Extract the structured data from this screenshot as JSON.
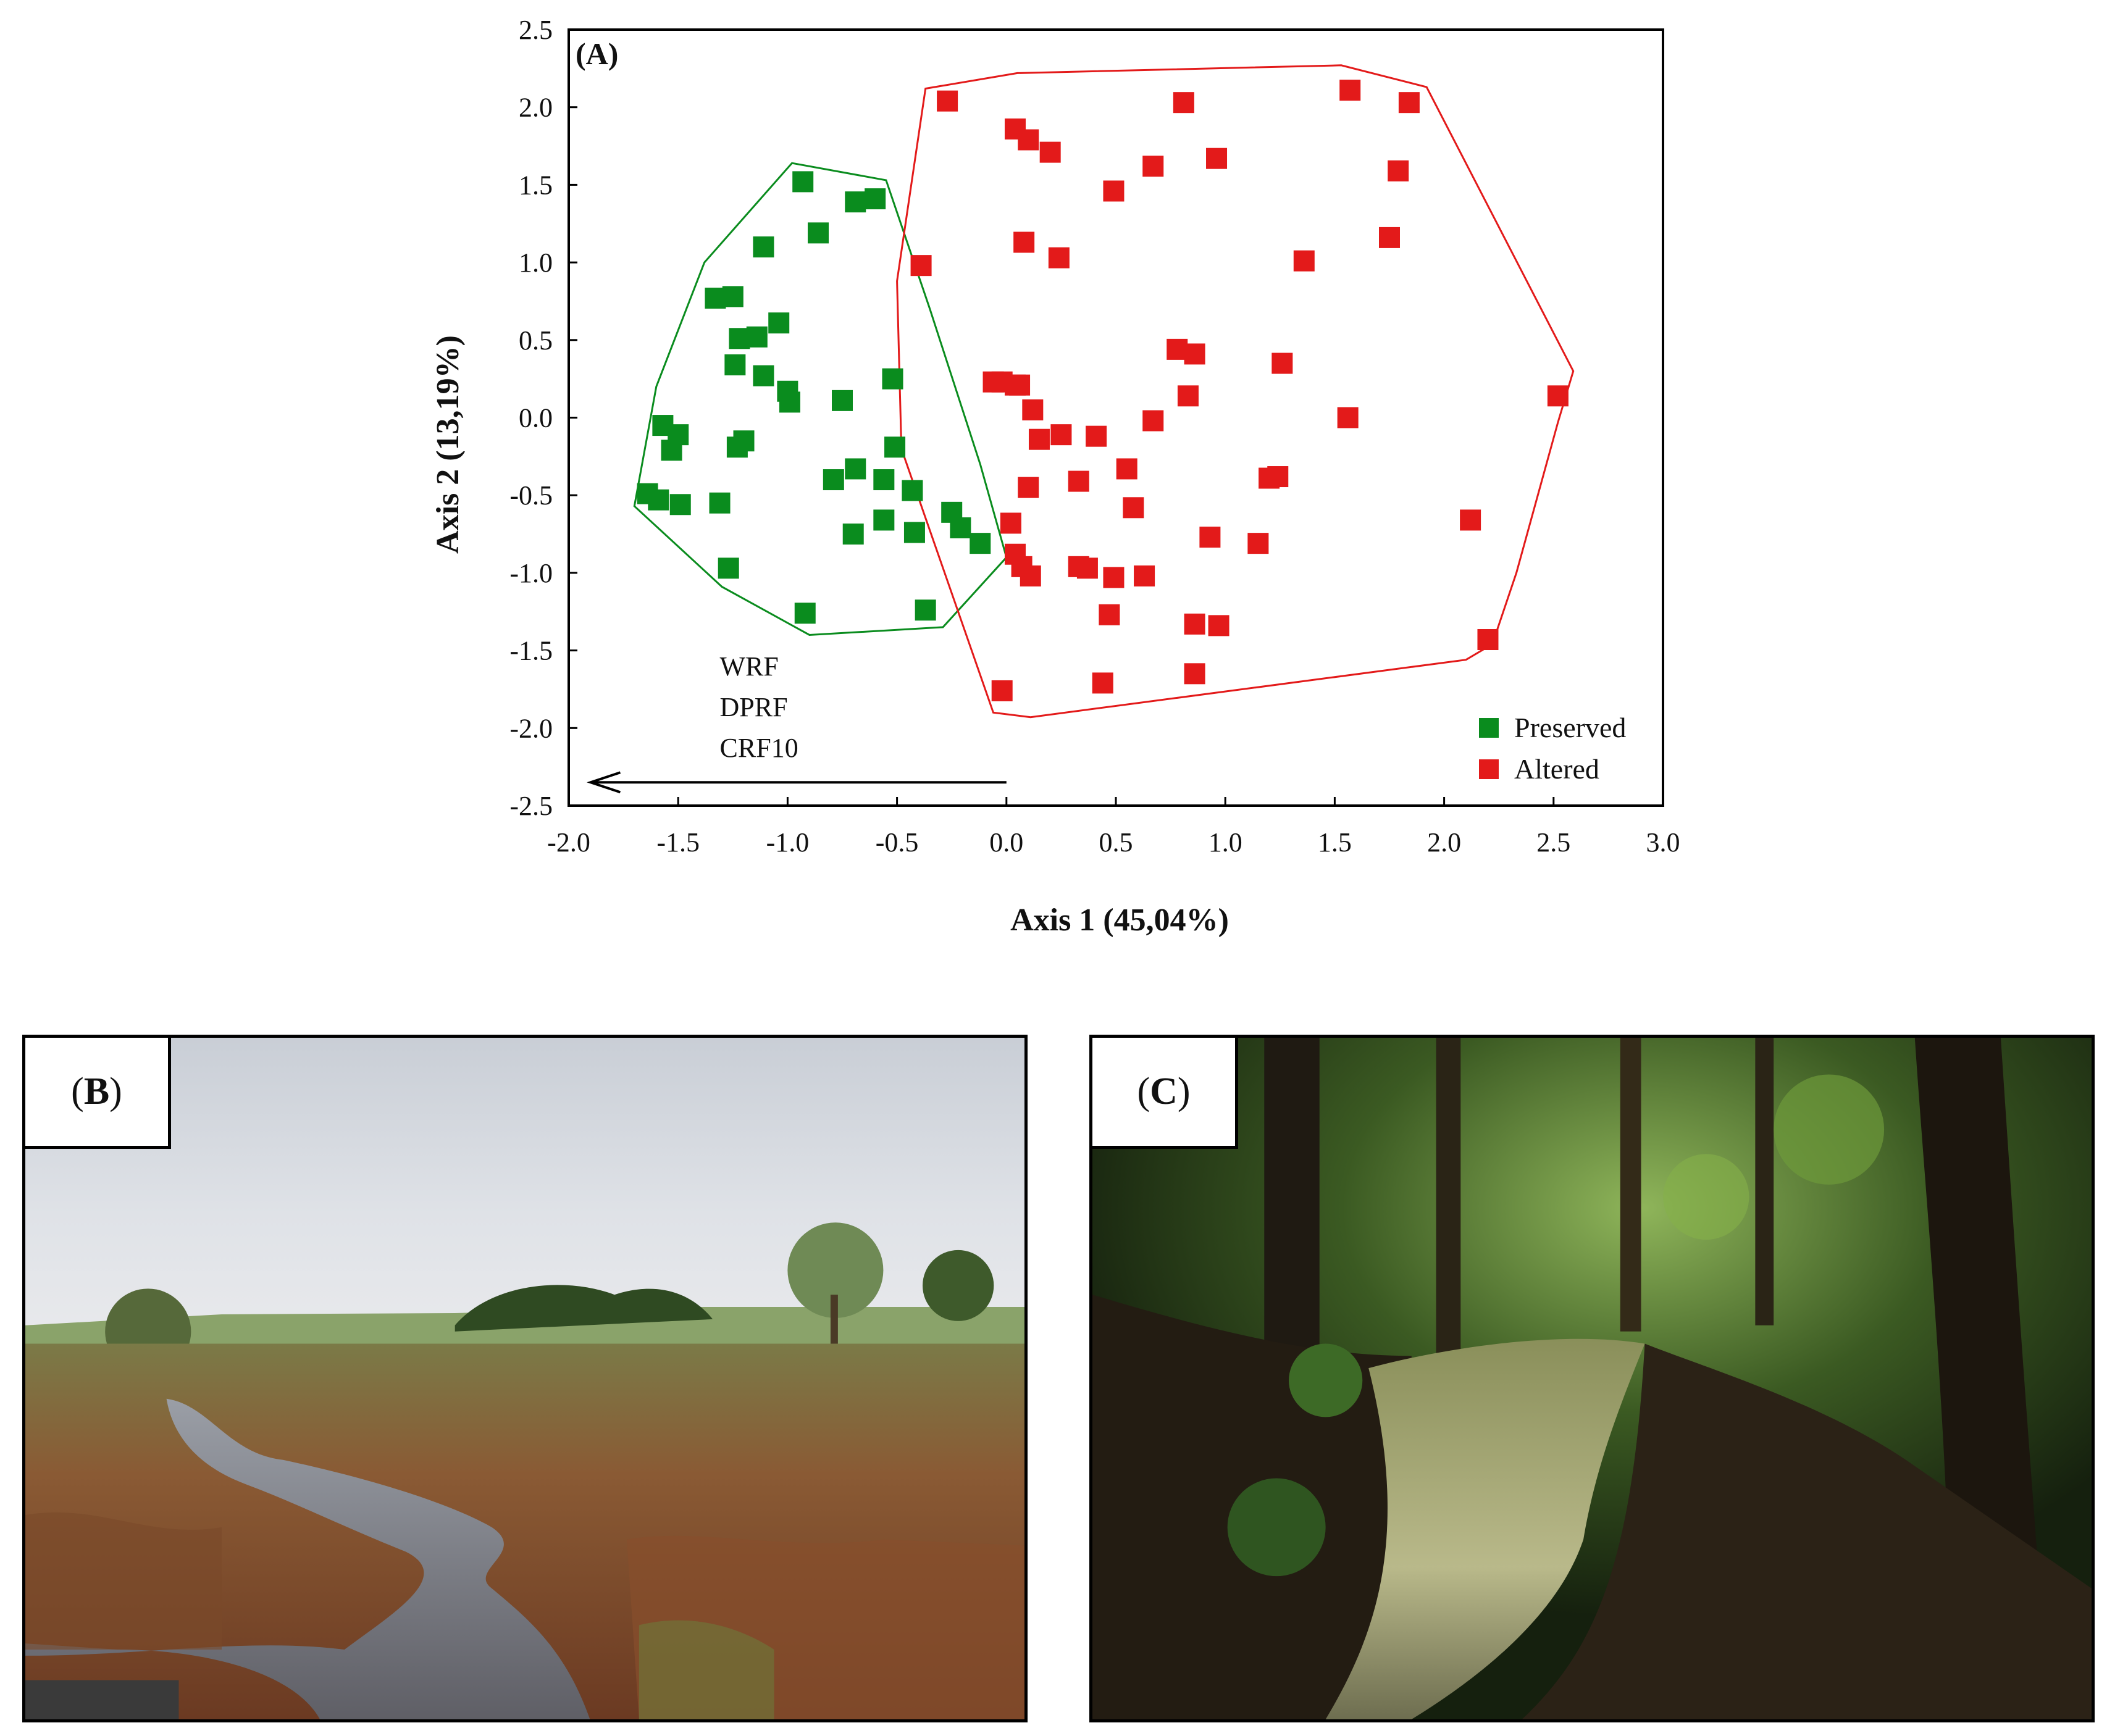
{
  "chart_data": {
    "type": "scatter",
    "panel_label": "(A)",
    "xlabel": "Axis 1 (45,04%)",
    "ylabel": "Axis 2 (13,19%)",
    "xlim": [
      -2.0,
      3.0
    ],
    "ylim": [
      -2.5,
      2.5
    ],
    "xticks": [
      "-2.0",
      "-1.5",
      "-1.0",
      "-0.5",
      "0.0",
      "0.5",
      "1.0",
      "1.5",
      "2.0",
      "2.5",
      "3.0"
    ],
    "yticks": [
      "2.5",
      "2.0",
      "1.5",
      "1.0",
      "0.5",
      "0.0",
      "-0.5",
      "-1.0",
      "-1.5",
      "-2.0",
      "-2.5"
    ],
    "legend_position": "bottom-right",
    "arrow": {
      "labels": [
        "WRF",
        "DPRF",
        "CRF10"
      ],
      "from": [
        0.0,
        -2.35
      ],
      "to": [
        -1.9,
        -2.35
      ]
    },
    "series": [
      {
        "name": "Preserved",
        "color": "#0a8c1e",
        "points": [
          [
            -0.93,
            1.52
          ],
          [
            -0.69,
            1.39
          ],
          [
            -0.6,
            1.41
          ],
          [
            -0.86,
            1.19
          ],
          [
            -1.11,
            1.1
          ],
          [
            -1.33,
            0.77
          ],
          [
            -1.25,
            0.78
          ],
          [
            -1.04,
            0.61
          ],
          [
            -1.22,
            0.51
          ],
          [
            -1.14,
            0.52
          ],
          [
            -1.24,
            0.34
          ],
          [
            -1.11,
            0.27
          ],
          [
            -1.0,
            0.17
          ],
          [
            -0.99,
            0.1
          ],
          [
            -0.75,
            0.11
          ],
          [
            -0.52,
            0.25
          ],
          [
            -1.57,
            -0.05
          ],
          [
            -1.5,
            -0.11
          ],
          [
            -1.53,
            -0.21
          ],
          [
            -1.2,
            -0.15
          ],
          [
            -1.23,
            -0.19
          ],
          [
            -0.51,
            -0.19
          ],
          [
            -1.64,
            -0.49
          ],
          [
            -1.59,
            -0.53
          ],
          [
            -1.49,
            -0.56
          ],
          [
            -1.31,
            -0.55
          ],
          [
            -0.79,
            -0.4
          ],
          [
            -0.69,
            -0.33
          ],
          [
            -0.56,
            -0.4
          ],
          [
            -0.43,
            -0.47
          ],
          [
            -0.25,
            -0.61
          ],
          [
            -0.21,
            -0.71
          ],
          [
            -0.12,
            -0.81
          ],
          [
            -0.7,
            -0.75
          ],
          [
            -0.56,
            -0.66
          ],
          [
            -0.42,
            -0.74
          ],
          [
            -1.27,
            -0.97
          ],
          [
            -0.92,
            -1.26
          ],
          [
            -0.37,
            -1.24
          ]
        ],
        "hull": [
          [
            -0.98,
            1.64
          ],
          [
            -0.55,
            1.53
          ],
          [
            -0.35,
            0.7
          ],
          [
            -0.12,
            -0.3
          ],
          [
            0.0,
            -0.9
          ],
          [
            -0.29,
            -1.35
          ],
          [
            -0.9,
            -1.4
          ],
          [
            -1.3,
            -1.09
          ],
          [
            -1.7,
            -0.57
          ],
          [
            -1.6,
            0.2
          ],
          [
            -1.38,
            1.0
          ]
        ]
      },
      {
        "name": "Altered",
        "color": "#e31a1a",
        "points": [
          [
            -0.27,
            2.04
          ],
          [
            0.04,
            1.86
          ],
          [
            0.1,
            1.79
          ],
          [
            0.2,
            1.71
          ],
          [
            0.81,
            2.03
          ],
          [
            1.57,
            2.11
          ],
          [
            1.84,
            2.03
          ],
          [
            0.96,
            1.67
          ],
          [
            1.79,
            1.59
          ],
          [
            0.67,
            1.62
          ],
          [
            0.49,
            1.46
          ],
          [
            0.08,
            1.13
          ],
          [
            0.24,
            1.03
          ],
          [
            1.36,
            1.01
          ],
          [
            1.75,
            1.16
          ],
          [
            -0.39,
            0.98
          ],
          [
            -0.06,
            0.23
          ],
          [
            -0.02,
            0.23
          ],
          [
            0.04,
            0.21
          ],
          [
            0.06,
            0.21
          ],
          [
            0.78,
            0.44
          ],
          [
            0.86,
            0.41
          ],
          [
            1.26,
            0.35
          ],
          [
            0.83,
            0.14
          ],
          [
            2.52,
            0.14
          ],
          [
            0.12,
            0.05
          ],
          [
            0.15,
            -0.14
          ],
          [
            0.25,
            -0.11
          ],
          [
            0.41,
            -0.12
          ],
          [
            0.67,
            -0.02
          ],
          [
            1.56,
            0.0
          ],
          [
            0.55,
            -0.33
          ],
          [
            0.33,
            -0.41
          ],
          [
            0.1,
            -0.45
          ],
          [
            0.58,
            -0.58
          ],
          [
            1.2,
            -0.39
          ],
          [
            1.24,
            -0.38
          ],
          [
            0.02,
            -0.68
          ],
          [
            0.93,
            -0.77
          ],
          [
            1.15,
            -0.81
          ],
          [
            2.12,
            -0.66
          ],
          [
            0.04,
            -0.88
          ],
          [
            0.07,
            -0.96
          ],
          [
            0.11,
            -1.02
          ],
          [
            0.33,
            -0.96
          ],
          [
            0.37,
            -0.97
          ],
          [
            0.49,
            -1.03
          ],
          [
            0.63,
            -1.02
          ],
          [
            0.47,
            -1.27
          ],
          [
            0.86,
            -1.33
          ],
          [
            0.97,
            -1.34
          ],
          [
            2.2,
            -1.43
          ],
          [
            0.44,
            -1.71
          ],
          [
            0.86,
            -1.65
          ],
          [
            -0.02,
            -1.76
          ]
        ],
        "hull": [
          [
            -0.37,
            2.12
          ],
          [
            0.05,
            2.22
          ],
          [
            1.53,
            2.27
          ],
          [
            1.92,
            2.13
          ],
          [
            2.59,
            0.3
          ],
          [
            2.52,
            -0.03
          ],
          [
            2.33,
            -1.0
          ],
          [
            2.22,
            -1.46
          ],
          [
            2.1,
            -1.56
          ],
          [
            0.11,
            -1.93
          ],
          [
            -0.06,
            -1.9
          ],
          [
            -0.48,
            -0.2
          ],
          [
            -0.5,
            0.88
          ]
        ]
      }
    ]
  },
  "photos": [
    {
      "label": "B",
      "scene": "open-wetland-stream"
    },
    {
      "label": "C",
      "scene": "forest-stream"
    }
  ]
}
